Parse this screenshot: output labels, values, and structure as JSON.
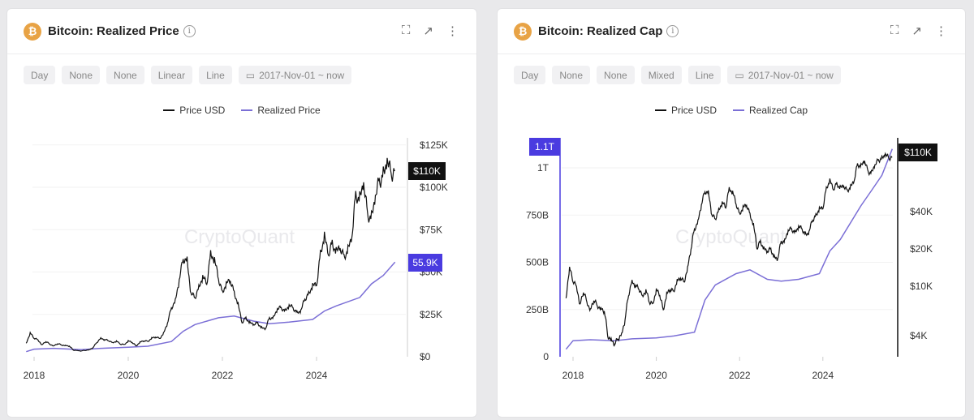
{
  "colors": {
    "price": "#111111",
    "realized": "#7b6fd6",
    "badge_purple": "#4a3be0",
    "badge_black": "#111111",
    "coin": "#e8a345"
  },
  "watermark": "CryptoQuant",
  "panels": [
    {
      "title": "Bitcoin: Realized Price",
      "coin_icon": "bitcoin-icon",
      "buttons": [
        "Day",
        "None",
        "None",
        "Linear",
        "Line"
      ],
      "date_range": "2017-Nov-01 ~ now",
      "legend": [
        "Price USD",
        "Realized Price"
      ]
    },
    {
      "title": "Bitcoin: Realized Cap",
      "coin_icon": "bitcoin-icon",
      "buttons": [
        "Day",
        "None",
        "None",
        "Mixed",
        "Line"
      ],
      "date_range": "2017-Nov-01 ~ now",
      "legend": [
        "Price USD",
        "Realized Cap"
      ]
    }
  ],
  "chart_data": [
    {
      "type": "line",
      "x_ticks": [
        "2018",
        "2020",
        "2022",
        "2024"
      ],
      "y_axis": {
        "side": "right",
        "scale": "linear",
        "range": [
          0,
          125000
        ],
        "ticks": [
          "$125K",
          "$100K",
          "$75K",
          "$50K",
          "$25K",
          "$0"
        ]
      },
      "badges": {
        "price": "$110K",
        "realized": "55.9K"
      },
      "series": [
        {
          "name": "Price USD",
          "points": [
            [
              "2017-11",
              8000
            ],
            [
              "2017-12",
              14000
            ],
            [
              "2018-01",
              11000
            ],
            [
              "2018-02",
              10000
            ],
            [
              "2018-03",
              7000
            ],
            [
              "2018-04",
              9000
            ],
            [
              "2018-05",
              7500
            ],
            [
              "2018-06",
              6400
            ],
            [
              "2018-07",
              7700
            ],
            [
              "2018-08",
              7000
            ],
            [
              "2018-09",
              6600
            ],
            [
              "2018-10",
              6300
            ],
            [
              "2018-11",
              4000
            ],
            [
              "2018-12",
              3700
            ],
            [
              "2019-01",
              3400
            ],
            [
              "2019-02",
              3800
            ],
            [
              "2019-03",
              4100
            ],
            [
              "2019-04",
              5300
            ],
            [
              "2019-05",
              8500
            ],
            [
              "2019-06",
              11000
            ],
            [
              "2019-07",
              10000
            ],
            [
              "2019-08",
              9600
            ],
            [
              "2019-09",
              8300
            ],
            [
              "2019-10",
              9200
            ],
            [
              "2019-11",
              7500
            ],
            [
              "2019-12",
              7200
            ],
            [
              "2020-01",
              9300
            ],
            [
              "2020-02",
              8500
            ],
            [
              "2020-03",
              6400
            ],
            [
              "2020-04",
              8600
            ],
            [
              "2020-05",
              9400
            ],
            [
              "2020-06",
              9100
            ],
            [
              "2020-07",
              11000
            ],
            [
              "2020-08",
              11600
            ],
            [
              "2020-09",
              10800
            ],
            [
              "2020-10",
              13800
            ],
            [
              "2020-11",
              19700
            ],
            [
              "2020-12",
              29000
            ],
            [
              "2021-01",
              33000
            ],
            [
              "2021-02",
              45000
            ],
            [
              "2021-03",
              58000
            ],
            [
              "2021-04",
              57000
            ],
            [
              "2021-05",
              37000
            ],
            [
              "2021-06",
              35000
            ],
            [
              "2021-07",
              41000
            ],
            [
              "2021-08",
              47000
            ],
            [
              "2021-09",
              43000
            ],
            [
              "2021-10",
              61000
            ],
            [
              "2021-11",
              57000
            ],
            [
              "2021-12",
              46000
            ],
            [
              "2022-01",
              38000
            ],
            [
              "2022-02",
              43000
            ],
            [
              "2022-03",
              45000
            ],
            [
              "2022-04",
              38000
            ],
            [
              "2022-05",
              31000
            ],
            [
              "2022-06",
              20000
            ],
            [
              "2022-07",
              23000
            ],
            [
              "2022-08",
              20000
            ],
            [
              "2022-09",
              19000
            ],
            [
              "2022-10",
              20000
            ],
            [
              "2022-11",
              17000
            ],
            [
              "2022-12",
              16500
            ],
            [
              "2023-01",
              23000
            ],
            [
              "2023-02",
              23000
            ],
            [
              "2023-03",
              28000
            ],
            [
              "2023-04",
              29000
            ],
            [
              "2023-05",
              27000
            ],
            [
              "2023-06",
              30000
            ],
            [
              "2023-07",
              29000
            ],
            [
              "2023-08",
              26000
            ],
            [
              "2023-09",
              27000
            ],
            [
              "2023-10",
              34000
            ],
            [
              "2023-11",
              37000
            ],
            [
              "2023-12",
              42000
            ],
            [
              "2024-01",
              42000
            ],
            [
              "2024-02",
              61000
            ],
            [
              "2024-03",
              71000
            ],
            [
              "2024-04",
              60000
            ],
            [
              "2024-05",
              67000
            ],
            [
              "2024-06",
              62000
            ],
            [
              "2024-07",
              64000
            ],
            [
              "2024-08",
              59000
            ],
            [
              "2024-09",
              63000
            ],
            [
              "2024-10",
              70000
            ],
            [
              "2024-11",
              96000
            ],
            [
              "2024-12",
              93000
            ],
            [
              "2025-01",
              102000
            ],
            [
              "2025-02",
              84000
            ],
            [
              "2025-03",
              82000
            ],
            [
              "2025-04",
              94000
            ],
            [
              "2025-05",
              104000
            ],
            [
              "2025-06",
              107000
            ],
            [
              "2025-07",
              115000
            ],
            [
              "2025-08",
              108000
            ],
            [
              "2025-09",
              110000
            ]
          ]
        },
        {
          "name": "Realized Price",
          "points": [
            [
              "2017-11",
              3000
            ],
            [
              "2018-01",
              4500
            ],
            [
              "2018-06",
              5000
            ],
            [
              "2019-01",
              4200
            ],
            [
              "2019-06",
              5000
            ],
            [
              "2020-01",
              5600
            ],
            [
              "2020-06",
              6200
            ],
            [
              "2020-12",
              9000
            ],
            [
              "2021-03",
              15000
            ],
            [
              "2021-06",
              19000
            ],
            [
              "2021-12",
              23000
            ],
            [
              "2022-04",
              24000
            ],
            [
              "2022-09",
              21000
            ],
            [
              "2023-01",
              19500
            ],
            [
              "2023-06",
              20500
            ],
            [
              "2023-12",
              22000
            ],
            [
              "2024-03",
              27000
            ],
            [
              "2024-06",
              30000
            ],
            [
              "2024-12",
              35000
            ],
            [
              "2025-03",
              43000
            ],
            [
              "2025-06",
              48000
            ],
            [
              "2025-09",
              55900
            ]
          ]
        }
      ]
    },
    {
      "type": "line",
      "x_ticks": [
        "2018",
        "2020",
        "2022",
        "2024"
      ],
      "y_axis_left": {
        "label_for": "Realized Cap",
        "scale": "linear",
        "range": [
          0,
          1150000000000
        ],
        "ticks": [
          "1T",
          "750B",
          "500B",
          "250B",
          "0"
        ]
      },
      "y_axis_right": {
        "label_for": "Price USD",
        "scale": "log",
        "range": [
          2700,
          150000
        ],
        "ticks": [
          "$40K",
          "$20K",
          "$10K",
          "$4K"
        ]
      },
      "badges": {
        "realized": "1.1T",
        "price": "$110K"
      },
      "series": [
        {
          "name": "Price USD",
          "axis": "right",
          "same_as": "chart_data.0 Price USD"
        },
        {
          "name": "Realized Cap",
          "axis": "left",
          "points": [
            [
              "2017-11",
              40000000000
            ],
            [
              "2018-01",
              85000000000
            ],
            [
              "2018-06",
              90000000000
            ],
            [
              "2019-01",
              85000000000
            ],
            [
              "2019-06",
              95000000000
            ],
            [
              "2020-01",
              100000000000
            ],
            [
              "2020-06",
              110000000000
            ],
            [
              "2020-12",
              130000000000
            ],
            [
              "2021-03",
              300000000000
            ],
            [
              "2021-06",
              380000000000
            ],
            [
              "2021-12",
              440000000000
            ],
            [
              "2022-04",
              460000000000
            ],
            [
              "2022-09",
              410000000000
            ],
            [
              "2023-01",
              400000000000
            ],
            [
              "2023-06",
              410000000000
            ],
            [
              "2023-12",
              440000000000
            ],
            [
              "2024-03",
              560000000000
            ],
            [
              "2024-06",
              620000000000
            ],
            [
              "2024-12",
              800000000000
            ],
            [
              "2025-03",
              880000000000
            ],
            [
              "2025-06",
              960000000000
            ],
            [
              "2025-09",
              1100000000000
            ]
          ]
        }
      ]
    }
  ]
}
